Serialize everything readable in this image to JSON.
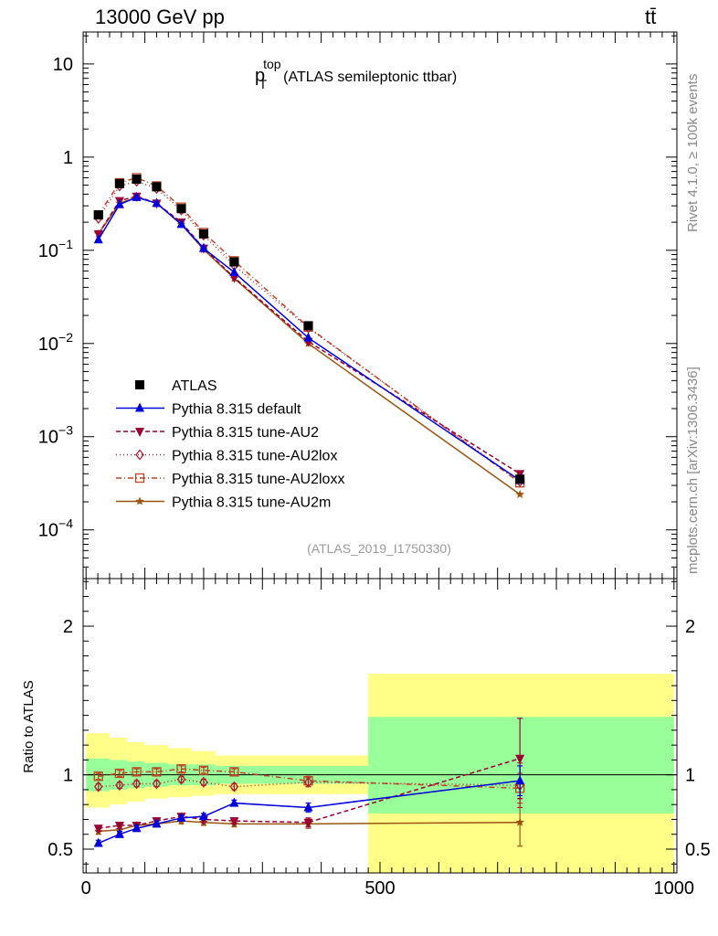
{
  "header": {
    "energy_label": "13000 GeV pp",
    "process_main": "tt",
    "process_bar": "̄"
  },
  "side": {
    "rivet_label": "Rivet 4.1.0, ≥ 100k events",
    "mcplots_label": "mcplots.cern.ch [arXiv:1306.3436]"
  },
  "chart_data": [
    {
      "type": "line",
      "panel": "main",
      "title_main": "p",
      "title_sup": "top",
      "title_sub": "T",
      "title_rest": "(ATLAS semileptonic ttbar)",
      "analysis_label": "(ATLAS_2019_I1750330)",
      "yscale": "log",
      "xlim": [
        -5,
        1005
      ],
      "ylim": [
        3e-05,
        22
      ],
      "yticks": [
        {
          "value": 0.0001,
          "base": "10",
          "exp": "−4"
        },
        {
          "value": 0.001,
          "base": "10",
          "exp": "−3"
        },
        {
          "value": 0.01,
          "base": "10",
          "exp": "−2"
        },
        {
          "value": 0.1,
          "base": "10",
          "exp": "−1"
        },
        {
          "value": 1,
          "base": "1",
          "exp": ""
        },
        {
          "value": 10,
          "base": "10",
          "exp": ""
        }
      ],
      "x": [
        21,
        57,
        86,
        120,
        162,
        200,
        252,
        378,
        738
      ],
      "legend": [
        {
          "key": "atlas",
          "label": "ATLAS"
        },
        {
          "key": "default",
          "label": "Pythia 8.315 default"
        },
        {
          "key": "au2",
          "label": "Pythia 8.315 tune-AU2"
        },
        {
          "key": "au2lox",
          "label": "Pythia 8.315 tune-AU2lox"
        },
        {
          "key": "au2loxx",
          "label": "Pythia 8.315 tune-AU2loxx"
        },
        {
          "key": "au2m",
          "label": "Pythia 8.315 tune-AU2m"
        }
      ],
      "series": [
        {
          "key": "atlas",
          "name": "ATLAS",
          "color": "#000000",
          "marker": "square",
          "values": [
            0.24,
            0.52,
            0.58,
            0.48,
            0.28,
            0.15,
            0.075,
            0.0155,
            0.00035
          ]
        },
        {
          "key": "default",
          "name": "Pythia 8.315 default",
          "color": "#0000dd",
          "marker": "triangle-up",
          "dash": "",
          "values": [
            0.13,
            0.31,
            0.37,
            0.32,
            0.19,
            0.105,
            0.058,
            0.0115,
            0.00034
          ]
        },
        {
          "key": "au2",
          "name": "Pythia 8.315 tune-AU2",
          "color": "#990033",
          "marker": "triangle-down",
          "dash": "5,3",
          "values": [
            0.15,
            0.34,
            0.38,
            0.32,
            0.2,
            0.105,
            0.051,
            0.0105,
            0.0004
          ]
        },
        {
          "key": "au2lox",
          "name": "Pythia 8.315 tune-AU2lox",
          "color": "#aa2233",
          "marker": "diamond",
          "dash": "1,3",
          "values": [
            0.22,
            0.49,
            0.55,
            0.46,
            0.27,
            0.145,
            0.069,
            0.0147,
            0.00033
          ]
        },
        {
          "key": "au2loxx",
          "name": "Pythia 8.315 tune-AU2loxx",
          "color": "#bb4422",
          "marker": "square-open",
          "dash": "6,3,1,3",
          "values": [
            0.24,
            0.53,
            0.6,
            0.49,
            0.29,
            0.155,
            0.077,
            0.015,
            0.00032
          ]
        },
        {
          "key": "au2m",
          "name": "Pythia 8.315 tune-AU2m",
          "color": "#995511",
          "marker": "star",
          "dash": "",
          "values": [
            0.15,
            0.32,
            0.37,
            0.32,
            0.19,
            0.102,
            0.05,
            0.01,
            0.00024
          ]
        }
      ]
    },
    {
      "type": "line",
      "panel": "ratio",
      "ylabel": "Ratio to ATLAS",
      "xlim": [
        -5,
        1005
      ],
      "ylim": [
        0.34,
        2.32
      ],
      "yticks": [
        {
          "value": 0.5,
          "label": "0.5"
        },
        {
          "value": 1,
          "label": "1"
        },
        {
          "value": 2,
          "label": "2"
        }
      ],
      "xticks": [
        {
          "value": 0,
          "label": "0"
        },
        {
          "value": 500,
          "label": "500"
        },
        {
          "value": 1000,
          "label": "1000"
        }
      ],
      "bin_edges": [
        0,
        40,
        70,
        100,
        140,
        180,
        220,
        290,
        480,
        1000
      ],
      "band_inner": [
        [
          0.89,
          1.11
        ],
        [
          0.9,
          1.1
        ],
        [
          0.91,
          1.09
        ],
        [
          0.92,
          1.08
        ],
        [
          0.93,
          1.07
        ],
        [
          0.93,
          1.07
        ],
        [
          0.94,
          1.06
        ],
        [
          0.94,
          1.06
        ],
        [
          0.74,
          1.39
        ]
      ],
      "band_outer": [
        [
          0.78,
          1.28
        ],
        [
          0.8,
          1.25
        ],
        [
          0.82,
          1.22
        ],
        [
          0.84,
          1.2
        ],
        [
          0.85,
          1.18
        ],
        [
          0.86,
          1.16
        ],
        [
          0.87,
          1.13
        ],
        [
          0.87,
          1.13
        ],
        [
          0.34,
          1.68
        ]
      ],
      "band_inner_color": "#99ff99",
      "band_outer_color": "#ffff88",
      "x": [
        21,
        57,
        86,
        120,
        162,
        200,
        252,
        378,
        738
      ],
      "series": [
        {
          "key": "default",
          "color": "#0000dd",
          "marker": "triangle-up",
          "dash": "",
          "values": [
            0.54,
            0.6,
            0.64,
            0.67,
            0.71,
            0.72,
            0.81,
            0.78,
            0.96
          ],
          "err": [
            0.02,
            0.02,
            0.02,
            0.02,
            0.02,
            0.02,
            0.02,
            0.03,
            0.1
          ]
        },
        {
          "key": "au2",
          "color": "#990033",
          "marker": "triangle-down",
          "dash": "5,3",
          "values": [
            0.64,
            0.66,
            0.66,
            0.69,
            0.72,
            0.7,
            0.69,
            0.68,
            1.11
          ],
          "err": [
            0.02,
            0.02,
            0.02,
            0.02,
            0.02,
            0.02,
            0.02,
            0.03,
            0.27
          ]
        },
        {
          "key": "au2lox",
          "color": "#aa2233",
          "marker": "diamond",
          "dash": "1,3",
          "values": [
            0.92,
            0.93,
            0.94,
            0.94,
            0.97,
            0.95,
            0.92,
            0.95,
            0.93
          ],
          "err": [
            0.02,
            0.02,
            0.02,
            0.02,
            0.02,
            0.02,
            0.02,
            0.03,
            0.15
          ]
        },
        {
          "key": "au2loxx",
          "color": "#bb4422",
          "marker": "square-open",
          "dash": "6,3,1,3",
          "values": [
            0.99,
            1.01,
            1.02,
            1.02,
            1.04,
            1.03,
            1.02,
            0.96,
            0.91
          ],
          "err": [
            0.02,
            0.02,
            0.02,
            0.02,
            0.02,
            0.02,
            0.02,
            0.03,
            0.1
          ]
        },
        {
          "key": "au2m",
          "color": "#995511",
          "marker": "star",
          "dash": "",
          "values": [
            0.62,
            0.63,
            0.66,
            0.67,
            0.69,
            0.68,
            0.67,
            0.67,
            0.68
          ],
          "err": [
            0.02,
            0.02,
            0.02,
            0.02,
            0.02,
            0.02,
            0.02,
            0.03,
            0.16
          ]
        }
      ]
    }
  ]
}
